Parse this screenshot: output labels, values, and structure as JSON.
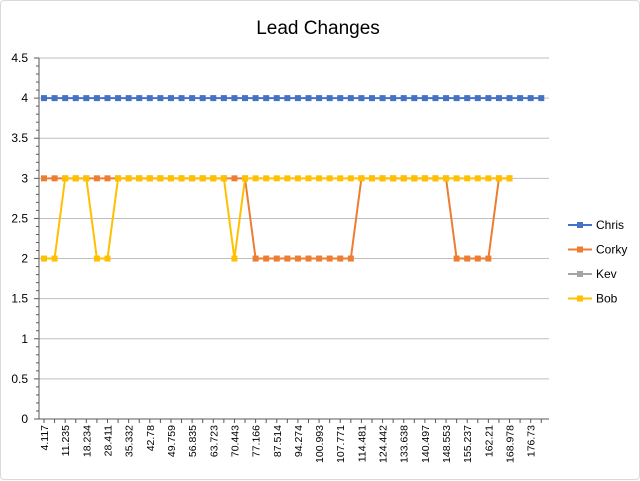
{
  "chart_data": {
    "type": "line",
    "title": "Lead Changes",
    "ylim": [
      0,
      4.5
    ],
    "ytick_step": 0.5,
    "grid": "horizontal",
    "legend_position": "right",
    "x_tick_labels": [
      "4.117",
      "11.235",
      "18.234",
      "28.411",
      "35.332",
      "42.78",
      "49.759",
      "56.835",
      "63.723",
      "70.443",
      "77.166",
      "87.514",
      "94.274",
      "100.993",
      "107.771",
      "114.481",
      "124.442",
      "133.638",
      "140.497",
      "148.553",
      "155.237",
      "162.21",
      "168.978",
      "176.73"
    ],
    "x_count": 48,
    "series": [
      {
        "name": "Chris",
        "color": "#4472C4",
        "marker": "square",
        "values": [
          4,
          4,
          4,
          4,
          4,
          4,
          4,
          4,
          4,
          4,
          4,
          4,
          4,
          4,
          4,
          4,
          4,
          4,
          4,
          4,
          4,
          4,
          4,
          4,
          4,
          4,
          4,
          4,
          4,
          4,
          4,
          4,
          4,
          4,
          4,
          4,
          4,
          4,
          4,
          4,
          4,
          4,
          4,
          4,
          4,
          4,
          4,
          4
        ]
      },
      {
        "name": "Corky",
        "color": "#ED7D31",
        "marker": "square",
        "values": [
          3,
          3,
          3,
          3,
          3,
          3,
          3,
          3,
          3,
          3,
          3,
          3,
          3,
          3,
          3,
          3,
          3,
          3,
          3,
          3,
          2,
          2,
          2,
          2,
          2,
          2,
          2,
          2,
          2,
          2,
          3,
          3,
          3,
          3,
          3,
          3,
          3,
          3,
          3,
          2,
          2,
          2,
          2,
          3,
          3,
          null,
          null,
          null
        ]
      },
      {
        "name": "Kev",
        "color": "#A5A5A5",
        "marker": "square",
        "values": []
      },
      {
        "name": "Bob",
        "color": "#FFC000",
        "marker": "square",
        "values": [
          2,
          2,
          3,
          3,
          3,
          2,
          2,
          3,
          3,
          3,
          3,
          3,
          3,
          3,
          3,
          3,
          3,
          3,
          2,
          3,
          3,
          3,
          3,
          3,
          3,
          3,
          3,
          3,
          3,
          3,
          3,
          3,
          3,
          3,
          3,
          3,
          3,
          3,
          3,
          3,
          3,
          3,
          3,
          3,
          3,
          null,
          null,
          null
        ]
      }
    ]
  }
}
